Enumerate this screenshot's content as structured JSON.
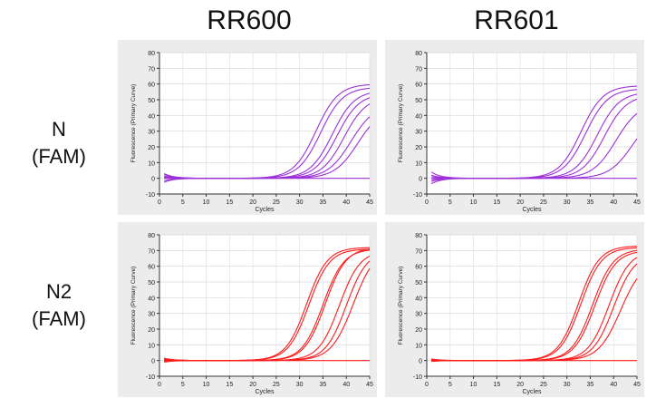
{
  "columns": [
    "RR600",
    "RR601"
  ],
  "rows": [
    {
      "line1": "N",
      "line2": "(FAM)"
    },
    {
      "line1": "N2",
      "line2": "(FAM)"
    }
  ],
  "chart_data": [
    {
      "type": "line",
      "panel": "N (FAM) / RR600",
      "color": "#9b30d9",
      "xlabel": "Cycles",
      "ylabel": "Fluorescence (Primary Curve)",
      "xlim": [
        0,
        45
      ],
      "ylim": [
        -10,
        80
      ],
      "xticks": [
        0,
        5,
        10,
        15,
        20,
        25,
        30,
        35,
        40,
        45
      ],
      "yticks": [
        -10,
        0,
        10,
        20,
        30,
        40,
        50,
        60,
        70,
        80
      ],
      "curves": [
        {
          "ct": 33.5,
          "plateau": 60,
          "slope": 0.42,
          "start": 1.5
        },
        {
          "ct": 34.5,
          "plateau": 58,
          "slope": 0.42,
          "start": 0.5
        },
        {
          "ct": 37.0,
          "plateau": 56,
          "slope": 0.42,
          "start": 2.5
        },
        {
          "ct": 38.0,
          "plateau": 54,
          "slope": 0.42,
          "start": -1.5
        },
        {
          "ct": 39.5,
          "plateau": 52,
          "slope": 0.42,
          "start": 1.0
        },
        {
          "ct": 41.0,
          "plateau": 47,
          "slope": 0.4,
          "start": -2.5
        },
        {
          "ct": 42.5,
          "plateau": 45,
          "slope": 0.4,
          "start": 3.0
        },
        {
          "ct": 60,
          "plateau": 0,
          "slope": 0.4,
          "start": 0.0
        }
      ]
    },
    {
      "type": "line",
      "panel": "N (FAM) / RR601",
      "color": "#9b30d9",
      "xlabel": "Cycles",
      "ylabel": "Fluorescence (Primary Curve)",
      "xlim": [
        0,
        45
      ],
      "ylim": [
        -10,
        80
      ],
      "xticks": [
        0,
        5,
        10,
        15,
        20,
        25,
        30,
        35,
        40,
        45
      ],
      "yticks": [
        -10,
        0,
        10,
        20,
        30,
        40,
        50,
        60,
        70,
        80
      ],
      "curves": [
        {
          "ct": 33.0,
          "plateau": 59,
          "slope": 0.42,
          "start": 4.0
        },
        {
          "ct": 34.0,
          "plateau": 57,
          "slope": 0.42,
          "start": 1.0
        },
        {
          "ct": 36.5,
          "plateau": 55,
          "slope": 0.42,
          "start": -1.0
        },
        {
          "ct": 38.0,
          "plateau": 53,
          "slope": 0.42,
          "start": -3.5
        },
        {
          "ct": 40.5,
          "plateau": 48,
          "slope": 0.4,
          "start": 2.0
        },
        {
          "ct": 44.0,
          "plateau": 42,
          "slope": 0.4,
          "start": -2.0
        },
        {
          "ct": 60,
          "plateau": 0,
          "slope": 0.4,
          "start": 0.0
        }
      ]
    },
    {
      "type": "line",
      "panel": "N2 (FAM) / RR600",
      "color": "#ff1a1a",
      "xlabel": "Cycles",
      "ylabel": "Fluorescence (Primary Curve)",
      "xlim": [
        0,
        45
      ],
      "ylim": [
        -10,
        80
      ],
      "xticks": [
        0,
        5,
        10,
        15,
        20,
        25,
        30,
        35,
        40,
        45
      ],
      "yticks": [
        -10,
        0,
        10,
        20,
        30,
        40,
        50,
        60,
        70,
        80
      ],
      "curves": [
        {
          "ct": 31.5,
          "plateau": 72,
          "slope": 0.45,
          "start": 1.5
        },
        {
          "ct": 32.0,
          "plateau": 71,
          "slope": 0.45,
          "start": 0.5
        },
        {
          "ct": 35.0,
          "plateau": 71,
          "slope": 0.45,
          "start": -0.5
        },
        {
          "ct": 35.5,
          "plateau": 72,
          "slope": 0.45,
          "start": 1.0
        },
        {
          "ct": 38.5,
          "plateau": 70,
          "slope": 0.45,
          "start": -1.0
        },
        {
          "ct": 40.0,
          "plateau": 70,
          "slope": 0.45,
          "start": 0.0
        },
        {
          "ct": 41.5,
          "plateau": 72,
          "slope": 0.42,
          "start": 1.0
        },
        {
          "ct": 60,
          "plateau": 0,
          "slope": 0.4,
          "start": 0.0
        }
      ]
    },
    {
      "type": "line",
      "panel": "N2 (FAM) / RR601",
      "color": "#ff1a1a",
      "xlabel": "Cycles",
      "ylabel": "Fluorescence (Primary Curve)",
      "xlim": [
        0,
        45
      ],
      "ylim": [
        -10,
        80
      ],
      "xticks": [
        0,
        5,
        10,
        15,
        20,
        25,
        30,
        35,
        40,
        45
      ],
      "yticks": [
        -10,
        0,
        10,
        20,
        30,
        40,
        50,
        60,
        70,
        80
      ],
      "curves": [
        {
          "ct": 32.5,
          "plateau": 73,
          "slope": 0.45,
          "start": 1.0
        },
        {
          "ct": 33.0,
          "plateau": 72,
          "slope": 0.45,
          "start": 0.5
        },
        {
          "ct": 35.5,
          "plateau": 71,
          "slope": 0.45,
          "start": 0.0
        },
        {
          "ct": 36.0,
          "plateau": 70,
          "slope": 0.45,
          "start": -0.5
        },
        {
          "ct": 39.0,
          "plateau": 70,
          "slope": 0.45,
          "start": 0.5
        },
        {
          "ct": 40.0,
          "plateau": 68,
          "slope": 0.45,
          "start": -0.5
        },
        {
          "ct": 41.5,
          "plateau": 64,
          "slope": 0.42,
          "start": 0.0
        },
        {
          "ct": 60,
          "plateau": 0,
          "slope": 0.4,
          "start": 0.0
        }
      ]
    }
  ]
}
